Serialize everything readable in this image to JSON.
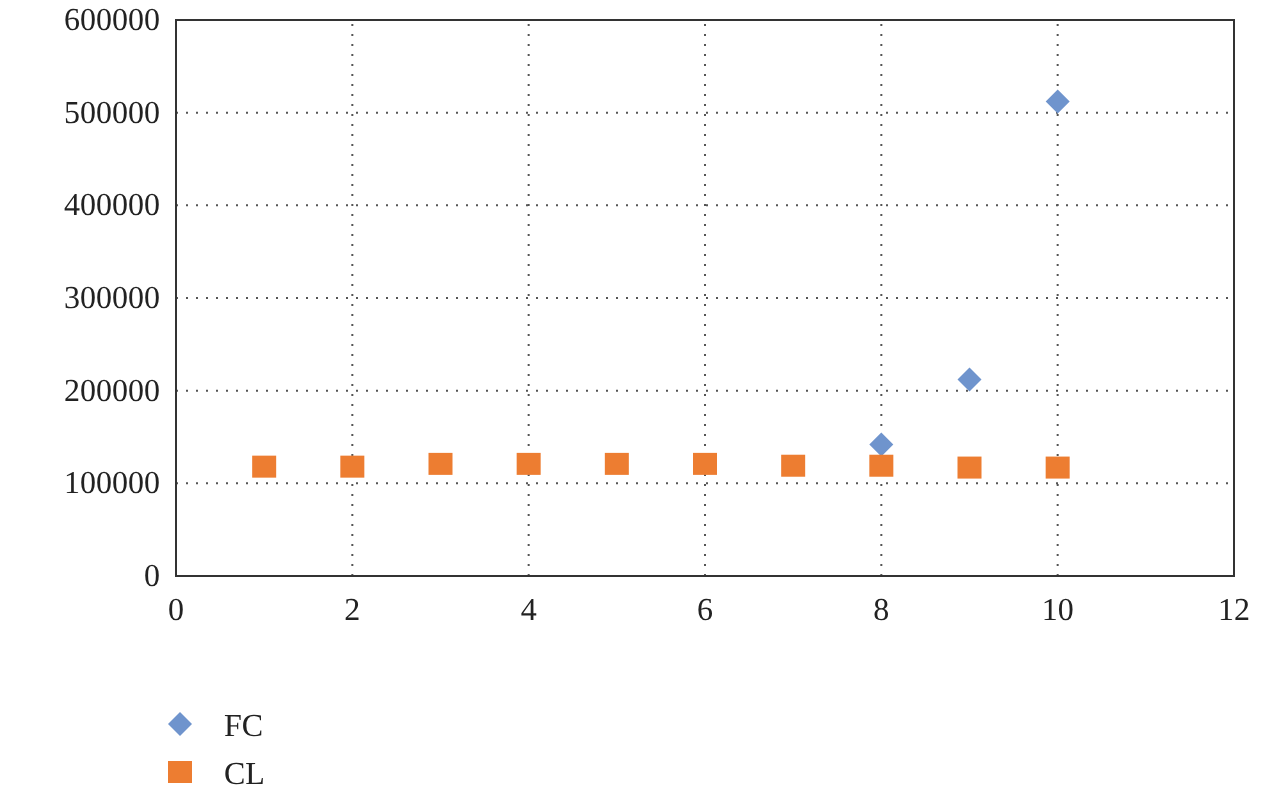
{
  "chart_data": {
    "type": "scatter",
    "x": [
      1,
      2,
      3,
      4,
      5,
      6,
      7,
      8,
      9,
      10
    ],
    "series": [
      {
        "name": "FC",
        "color": "#6f94cd",
        "marker": "diamond",
        "values": [
          null,
          null,
          null,
          null,
          null,
          null,
          null,
          142000,
          212000,
          512000
        ]
      },
      {
        "name": "CL",
        "color": "#ed7d31",
        "marker": "square",
        "values": [
          118000,
          118000,
          121000,
          121000,
          121000,
          121000,
          119000,
          119000,
          117000,
          117000
        ]
      }
    ],
    "xlim": [
      0,
      12
    ],
    "xticks": [
      0,
      2,
      4,
      6,
      8,
      10,
      12
    ],
    "ylim": [
      0,
      600000
    ],
    "yticks": [
      0,
      100000,
      200000,
      300000,
      400000,
      500000,
      600000
    ],
    "grid": true,
    "legend": "bottom left"
  }
}
